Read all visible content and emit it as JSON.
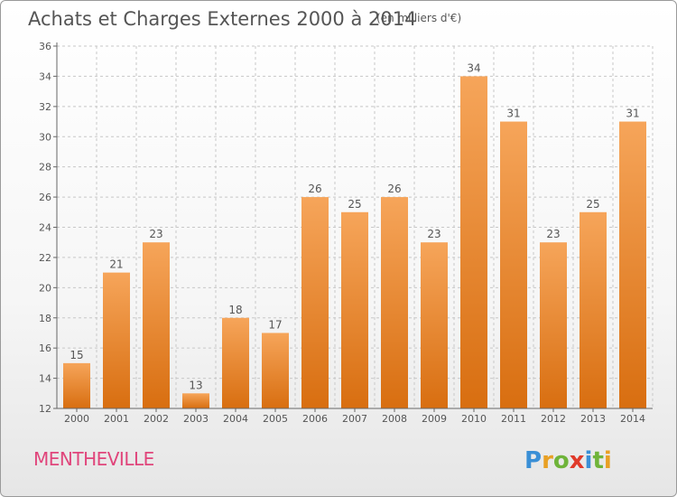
{
  "title": "Achats et Charges Externes 2000 à 2014",
  "unit": "(en milliers d'€)",
  "commune": "MENTHEVILLE",
  "logo": {
    "text": "Proxiti",
    "letter_colors": [
      "#3a8fd6",
      "#e8a024",
      "#6fb43a",
      "#e03a2a",
      "#3a8fd6",
      "#6fb43a",
      "#e8a024"
    ]
  },
  "colors": {
    "bar_top": "#f6a55a",
    "bar_bottom": "#d86e10",
    "grid": "#c8c8c8",
    "text": "#555555",
    "commune": "#e0457b"
  },
  "chart_data": {
    "type": "bar",
    "categories": [
      "2000",
      "2001",
      "2002",
      "2003",
      "2004",
      "2005",
      "2006",
      "2007",
      "2008",
      "2009",
      "2010",
      "2011",
      "2012",
      "2013",
      "2014"
    ],
    "values": [
      15,
      21,
      23,
      13,
      18,
      17,
      26,
      25,
      26,
      23,
      34,
      31,
      23,
      25,
      31
    ],
    "title": "Achats et Charges Externes 2000 à 2014",
    "ylabel": "",
    "xlabel": "",
    "ylim": [
      12,
      36
    ],
    "yticks": [
      12,
      14,
      16,
      18,
      20,
      22,
      24,
      26,
      28,
      30,
      32,
      34,
      36
    ],
    "grid": true,
    "data_labels": true
  }
}
